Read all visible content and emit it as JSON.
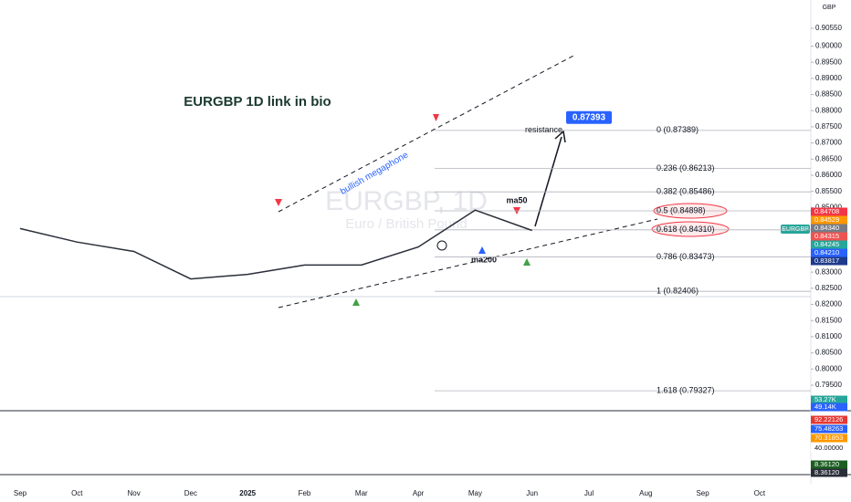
{
  "chart_data": {
    "type": "line",
    "title": "EURGBP 1D link in bio",
    "watermark": "EURGBP, 1D",
    "watermark_subtitle": "Euro / British Pound",
    "currency": "GBP",
    "symbol_tag": "EURGBP",
    "categories": [
      "Sep",
      "Oct",
      "Nov",
      "Dec",
      "2025",
      "Feb",
      "Mar",
      "Apr",
      "May",
      "Jun",
      "Jul",
      "Aug",
      "Sep",
      "Oct"
    ],
    "series": [
      {
        "name": "EURGBP",
        "color": "#2a2e39",
        "values": [
          0.8435,
          0.8393,
          0.8364,
          0.8279,
          0.8293,
          0.8322,
          0.8322,
          0.8378,
          0.8492,
          0.8429,
          null,
          null,
          null,
          null
        ]
      }
    ],
    "ylim": [
      0.795,
      0.9055
    ],
    "yticks": [
      {
        "value": 0.9055,
        "label": "0.90550"
      },
      {
        "value": 0.9,
        "label": "0.90000"
      },
      {
        "value": 0.895,
        "label": "0.89500"
      },
      {
        "value": 0.89,
        "label": "0.89000"
      },
      {
        "value": 0.885,
        "label": "0.88500"
      },
      {
        "value": 0.88,
        "label": "0.88000"
      },
      {
        "value": 0.875,
        "label": "0.87500"
      },
      {
        "value": 0.87,
        "label": "0.87000"
      },
      {
        "value": 0.865,
        "label": "0.86500"
      },
      {
        "value": 0.86,
        "label": "0.86000"
      },
      {
        "value": 0.855,
        "label": "0.85500"
      },
      {
        "value": 0.85,
        "label": "0.85000"
      },
      {
        "value": 0.835,
        "label": "0.83500"
      },
      {
        "value": 0.83,
        "label": "0.83000"
      },
      {
        "value": 0.825,
        "label": "0.82500"
      },
      {
        "value": 0.82,
        "label": "0.82000"
      },
      {
        "value": 0.815,
        "label": "0.81500"
      },
      {
        "value": 0.81,
        "label": "0.81000"
      },
      {
        "value": 0.805,
        "label": "0.80500"
      },
      {
        "value": 0.8,
        "label": "0.80000"
      },
      {
        "value": 0.795,
        "label": "0.79500"
      }
    ],
    "fib_levels": [
      {
        "value": 0.87389,
        "label": "0 (0.87389)"
      },
      {
        "value": 0.86213,
        "label": "0.236 (0.86213)"
      },
      {
        "value": 0.85486,
        "label": "0.382 (0.85486)"
      },
      {
        "value": 0.84898,
        "label": "0.5 (0.84898)"
      },
      {
        "value": 0.8431,
        "label": "0.618 (0.84310)"
      },
      {
        "value": 0.83473,
        "label": "0.786 (0.83473)"
      },
      {
        "value": 0.82406,
        "label": "1 (0.82406)"
      },
      {
        "value": 0.79327,
        "label": "1.618 (0.79327)"
      }
    ],
    "target": {
      "value": 0.87393,
      "label": "0.87393"
    },
    "annotations": [
      "bullish megaphone",
      "resistance",
      "ma50",
      "ma200"
    ],
    "price_tags": [
      {
        "label": "0.84708",
        "color": "#f23645"
      },
      {
        "label": "0.84529",
        "color": "#ff9800"
      },
      {
        "label": "0.84340",
        "color": "#787b86"
      },
      {
        "label": "0.84315",
        "color": "#ef5350"
      },
      {
        "label": "0.84245",
        "color": "#26a69a"
      },
      {
        "label": "0.84210",
        "color": "#2962ff"
      },
      {
        "label": "0.83817",
        "color": "#1e3a8a"
      }
    ],
    "indicator_tags": [
      {
        "label": "53.27K",
        "color": "#26a69a"
      },
      {
        "label": "49.14K",
        "color": "#2962ff"
      },
      {
        "label": "92.22126",
        "color": "#e53935"
      },
      {
        "label": "75.48263",
        "color": "#2962ff"
      },
      {
        "label": "70.31853",
        "color": "#ff9800"
      },
      {
        "label": "40.00000",
        "color": "#ffffff"
      },
      {
        "label": "8.36120",
        "color": "#1b5e20"
      },
      {
        "label": "8.36120",
        "color": "#2a2e39"
      }
    ]
  }
}
